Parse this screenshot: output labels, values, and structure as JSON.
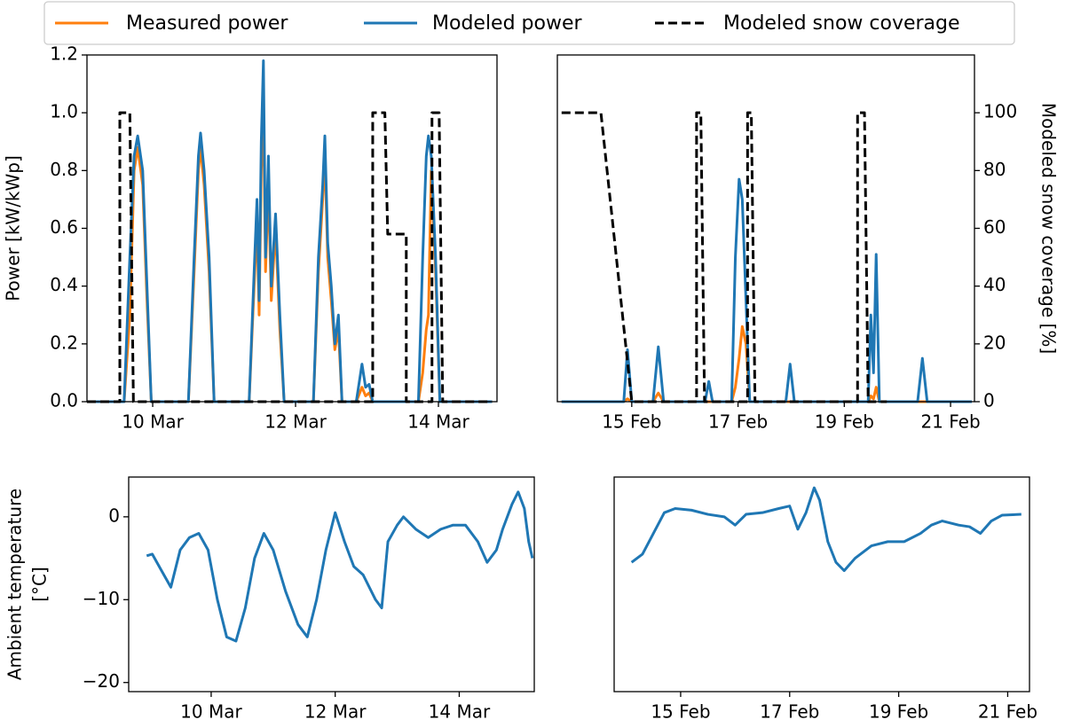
{
  "chart_data": [
    {
      "type": "line",
      "ylabel": "Power [kW/kWp]",
      "xlim": [
        9.08,
        14.82
      ],
      "xticks": [
        {
          "value": 10,
          "label": "10 Mar"
        },
        {
          "value": 12,
          "label": "12 Mar"
        },
        {
          "value": 14,
          "label": "14 Mar"
        }
      ],
      "ylim": [
        0,
        1.2
      ],
      "yticks": [
        {
          "value": 0,
          "label": "0.0"
        },
        {
          "value": 0.2,
          "label": "0.2"
        },
        {
          "value": 0.4,
          "label": "0.4"
        },
        {
          "value": 0.6,
          "label": "0.6"
        },
        {
          "value": 0.8,
          "label": "0.8"
        },
        {
          "value": 1.0,
          "label": "1.0"
        },
        {
          "value": 1.2,
          "label": "1.2"
        }
      ],
      "y2lim": [
        0,
        120
      ],
      "series": [
        {
          "name": "Measured power",
          "color": "#ff7f0e",
          "dashed": false,
          "x": [
            9.08,
            9.6,
            9.68,
            9.74,
            9.79,
            9.86,
            9.92,
            9.98,
            10.5,
            10.58,
            10.64,
            10.67,
            10.72,
            10.79,
            10.86,
            11.35,
            11.42,
            11.46,
            11.49,
            11.52,
            11.55,
            11.58,
            11.62,
            11.66,
            11.72,
            11.78,
            11.84,
            12.25,
            12.32,
            12.38,
            12.41,
            12.45,
            12.5,
            12.55,
            12.6,
            12.65,
            12.85,
            12.93,
            12.98,
            13.03,
            13.08,
            13.72,
            13.78,
            13.83,
            13.86,
            13.9,
            13.96,
            14.02,
            14.75
          ],
          "values": [
            0,
            0,
            0.3,
            0.8,
            0.88,
            0.75,
            0.35,
            0,
            0,
            0.45,
            0.8,
            0.88,
            0.75,
            0.45,
            0,
            0,
            0.4,
            0.62,
            0.3,
            0.8,
            1.0,
            0.45,
            0.75,
            0.35,
            0.6,
            0.25,
            0,
            0,
            0.45,
            0.7,
            0.85,
            0.5,
            0.35,
            0.18,
            0.25,
            0,
            0,
            0.05,
            0.02,
            0.03,
            0,
            0,
            0.1,
            0.25,
            0.3,
            0.8,
            0.45,
            0,
            0
          ]
        },
        {
          "name": "Modeled power",
          "color": "#1f77b4",
          "dashed": false,
          "x": [
            9.08,
            9.6,
            9.68,
            9.74,
            9.79,
            9.86,
            9.92,
            9.98,
            10.5,
            10.58,
            10.64,
            10.67,
            10.72,
            10.79,
            10.86,
            11.35,
            11.42,
            11.46,
            11.49,
            11.52,
            11.55,
            11.58,
            11.62,
            11.66,
            11.72,
            11.78,
            11.84,
            12.25,
            12.32,
            12.38,
            12.41,
            12.45,
            12.5,
            12.55,
            12.6,
            12.65,
            12.85,
            12.93,
            12.98,
            13.03,
            13.08,
            13.72,
            13.78,
            13.83,
            13.86,
            13.9,
            13.96,
            14.02,
            14.75
          ],
          "values": [
            0,
            0,
            0.5,
            0.85,
            0.92,
            0.8,
            0.4,
            0,
            0,
            0.5,
            0.85,
            0.93,
            0.8,
            0.5,
            0,
            0,
            0.45,
            0.7,
            0.35,
            0.9,
            1.18,
            0.5,
            0.85,
            0.4,
            0.65,
            0.3,
            0,
            0,
            0.5,
            0.75,
            0.92,
            0.55,
            0.4,
            0.2,
            0.3,
            0,
            0,
            0.13,
            0.05,
            0.06,
            0,
            0,
            0.5,
            0.85,
            0.92,
            0.85,
            0.5,
            0,
            0
          ]
        },
        {
          "name": "Modeled snow coverage",
          "color": "#000000",
          "dashed": true,
          "axis": "y2",
          "x": [
            9.08,
            9.54,
            9.54,
            9.68,
            9.73,
            13.08,
            13.08,
            13.25,
            13.29,
            13.55,
            13.55,
            13.91,
            13.91,
            14.01,
            14.06,
            14.75
          ],
          "values": [
            0,
            0,
            100,
            100,
            0,
            0,
            100,
            100,
            58,
            58,
            0,
            0,
            100,
            100,
            0,
            0
          ]
        }
      ]
    },
    {
      "type": "line",
      "y2label": "Modeled snow coverage [%]",
      "xlim": [
        13.6,
        21.45
      ],
      "xticks": [
        {
          "value": 15,
          "label": "15 Feb"
        },
        {
          "value": 17,
          "label": "17 Feb"
        },
        {
          "value": 19,
          "label": "19 Feb"
        },
        {
          "value": 21,
          "label": "21 Feb"
        }
      ],
      "ylim": [
        0,
        1.2
      ],
      "y2lim": [
        0,
        120
      ],
      "y2ticks": [
        0,
        20,
        40,
        60,
        80,
        100
      ],
      "series": [
        {
          "name": "Measured power",
          "color": "#ff7f0e",
          "dashed": false,
          "x": [
            13.68,
            14.85,
            14.92,
            15.0,
            15.4,
            15.5,
            15.6,
            16.38,
            16.45,
            16.52,
            16.88,
            16.95,
            17.02,
            17.08,
            17.15,
            17.22,
            17.9,
            17.98,
            18.06,
            19.45,
            19.5,
            19.55,
            19.6,
            19.66,
            20.38,
            20.47,
            20.56,
            21.4
          ],
          "values": [
            0,
            0,
            0.01,
            0,
            0,
            0.03,
            0,
            0,
            0,
            0,
            0,
            0.05,
            0.15,
            0.26,
            0.2,
            0,
            0,
            0,
            0,
            0,
            0.02,
            0.01,
            0.05,
            0,
            0,
            0,
            0,
            0
          ]
        },
        {
          "name": "Modeled power",
          "color": "#1f77b4",
          "dashed": false,
          "x": [
            13.68,
            14.85,
            14.92,
            15.0,
            15.4,
            15.5,
            15.6,
            16.38,
            16.45,
            16.52,
            16.88,
            16.95,
            17.02,
            17.08,
            17.15,
            17.22,
            17.9,
            17.98,
            18.06,
            19.45,
            19.5,
            19.55,
            19.6,
            19.66,
            20.38,
            20.47,
            20.56,
            21.4
          ],
          "values": [
            0,
            0,
            0.18,
            0,
            0,
            0.19,
            0,
            0,
            0.07,
            0,
            0,
            0.5,
            0.77,
            0.7,
            0.35,
            0,
            0,
            0.13,
            0,
            0,
            0.3,
            0.1,
            0.51,
            0,
            0,
            0.15,
            0,
            0
          ]
        },
        {
          "name": "Modeled snow coverage",
          "color": "#000000",
          "dashed": true,
          "axis": "y2",
          "x": [
            13.68,
            14.42,
            15.0,
            16.22,
            16.22,
            16.3,
            16.37,
            17.18,
            17.18,
            17.25,
            17.32,
            19.25,
            19.25,
            19.38,
            19.45,
            19.8
          ],
          "values": [
            100,
            100,
            0,
            0,
            100,
            100,
            0,
            0,
            100,
            100,
            0,
            0,
            100,
            100,
            0,
            0
          ]
        }
      ]
    },
    {
      "type": "line",
      "ylabel": [
        "Ambient temperature",
        "[°C]"
      ],
      "xlim": [
        8.67,
        15.21
      ],
      "xticks": [
        {
          "value": 10,
          "label": "10 Mar"
        },
        {
          "value": 12,
          "label": "12 Mar"
        },
        {
          "value": 14,
          "label": "14 Mar"
        }
      ],
      "ylim": [
        -21.1,
        4.8
      ],
      "yticks": [
        0,
        {
          "value": -10,
          "label": "−10"
        },
        {
          "value": -20,
          "label": "−20"
        }
      ],
      "series": [
        {
          "color": "#1f77b4",
          "dashed": false,
          "x": [
            8.96,
            9.05,
            9.2,
            9.35,
            9.5,
            9.65,
            9.8,
            9.95,
            10.1,
            10.25,
            10.4,
            10.55,
            10.7,
            10.85,
            11.0,
            11.2,
            11.4,
            11.55,
            11.7,
            11.85,
            12.0,
            12.15,
            12.3,
            12.45,
            12.65,
            12.75,
            12.85,
            13.0,
            13.1,
            13.3,
            13.5,
            13.7,
            13.9,
            14.1,
            14.3,
            14.45,
            14.6,
            14.7,
            14.85,
            14.95,
            15.05,
            15.12,
            15.18
          ],
          "values": [
            -4.7,
            -4.5,
            -6.5,
            -8.5,
            -4,
            -2.5,
            -2,
            -4,
            -10,
            -14.5,
            -15,
            -11,
            -5,
            -2,
            -4,
            -9,
            -13,
            -14.5,
            -10,
            -4,
            0.5,
            -3,
            -6,
            -7,
            -10,
            -11,
            -3,
            -1,
            0,
            -1.5,
            -2.5,
            -1.5,
            -1,
            -1,
            -3,
            -5.5,
            -4,
            -1.5,
            1.5,
            3,
            1,
            -3,
            -5
          ]
        }
      ]
    },
    {
      "type": "line",
      "xlim": [
        13.78,
        21.4
      ],
      "xticks": [
        {
          "value": 15,
          "label": "15 Feb"
        },
        {
          "value": 17,
          "label": "17 Feb"
        },
        {
          "value": 19,
          "label": "19 Feb"
        },
        {
          "value": 21,
          "label": "21 Feb"
        }
      ],
      "ylim": [
        -21.1,
        4.8
      ],
      "series": [
        {
          "color": "#1f77b4",
          "dashed": false,
          "x": [
            14.1,
            14.3,
            14.5,
            14.7,
            14.9,
            15.2,
            15.5,
            15.8,
            16.0,
            16.2,
            16.5,
            16.8,
            17.0,
            17.15,
            17.3,
            17.45,
            17.55,
            17.7,
            17.85,
            18.0,
            18.2,
            18.5,
            18.8,
            19.1,
            19.4,
            19.6,
            19.8,
            20.1,
            20.3,
            20.5,
            20.7,
            20.9,
            21.25
          ],
          "values": [
            -5.5,
            -4.5,
            -2,
            0.5,
            1,
            0.8,
            0.3,
            0,
            -1,
            0.3,
            0.5,
            1,
            1.3,
            -1.5,
            0.5,
            3.5,
            2,
            -3,
            -5.5,
            -6.5,
            -5,
            -3.5,
            -3,
            -3,
            -2,
            -1,
            -0.5,
            -1,
            -1.2,
            -2,
            -0.5,
            0.2,
            0.3
          ]
        }
      ]
    }
  ]
}
